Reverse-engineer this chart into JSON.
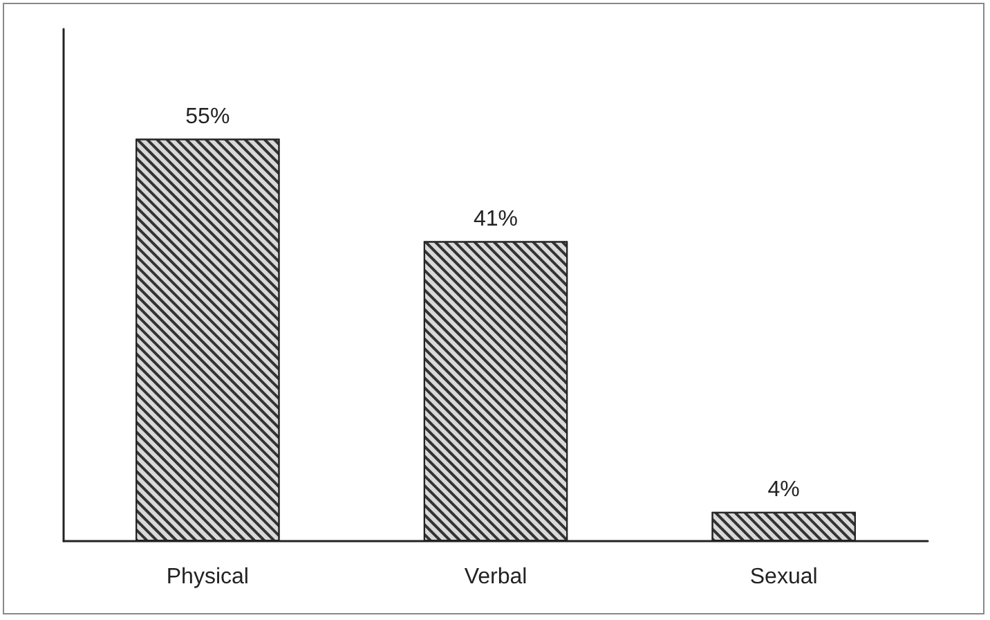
{
  "chart_data": {
    "type": "bar",
    "categories": [
      "Physical",
      "Verbal",
      "Sexual"
    ],
    "values": [
      55,
      41,
      4
    ],
    "value_labels": [
      "55%",
      "41%",
      "4%"
    ],
    "color": "#d9d9d9",
    "ylim": [
      0,
      70
    ],
    "tick_labels": "x"
  }
}
